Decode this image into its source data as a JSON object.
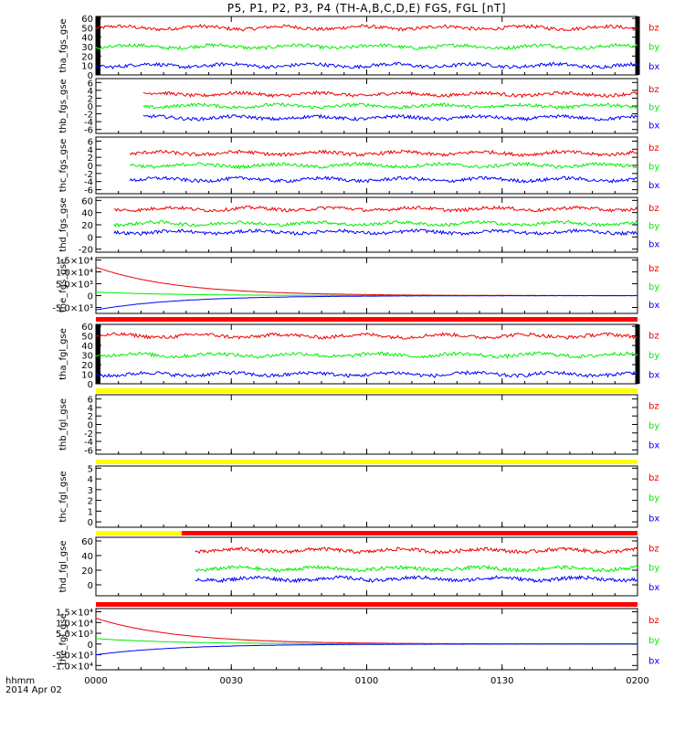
{
  "title": "P5, P1, P2, P3, P4 (TH-A,B,C,D,E) FGS, FGL [nT]",
  "time_axis": {
    "units_label": "hhmm",
    "date_label": "2014 Apr 02",
    "ticks": [
      "0000",
      "0030",
      "0100",
      "0130",
      "0200"
    ],
    "range_minutes": [
      0,
      120
    ]
  },
  "colors": {
    "bx": "#0000ff",
    "by": "#00ee00",
    "bz": "#ee0000",
    "flag_red": "#ff0000",
    "flag_yellow": "#ffff00",
    "frame": "#000000"
  },
  "chart_data": [
    {
      "type": "line",
      "panel": "tha_fgs_gse",
      "ylabel": "tha_fgs_gse",
      "yticks": [
        "0",
        "10",
        "20",
        "30",
        "40",
        "50",
        "60"
      ],
      "ylim": [
        0,
        62
      ],
      "legend": [
        "bz",
        "by",
        "bx"
      ],
      "data_x_range": [
        0,
        120
      ],
      "series": [
        {
          "name": "bz",
          "level": 50
        },
        {
          "name": "by",
          "level": 30
        },
        {
          "name": "bx",
          "level": 10
        }
      ],
      "dropout_bars": [
        [
          0,
          0.5
        ],
        [
          119.5,
          120
        ]
      ]
    },
    {
      "type": "line",
      "panel": "thb_fgs_gse",
      "ylabel": "thb_fgs_gse",
      "yticks": [
        "-6",
        "-4",
        "-2",
        "0",
        "2",
        "4",
        "6"
      ],
      "ylim": [
        -7,
        7
      ],
      "legend": [
        "bz",
        "by",
        "bx"
      ],
      "data_x_range": [
        10.5,
        120
      ],
      "series": [
        {
          "name": "bz",
          "level": 3
        },
        {
          "name": "by",
          "level": 0
        },
        {
          "name": "bx",
          "level": -3
        }
      ]
    },
    {
      "type": "line",
      "panel": "thc_fgs_gse",
      "ylabel": "thc_fgs_gse",
      "yticks": [
        "-6",
        "-4",
        "-2",
        "0",
        "2",
        "4",
        "6"
      ],
      "ylim": [
        -7,
        7
      ],
      "legend": [
        "bz",
        "by",
        "bx"
      ],
      "data_x_range": [
        7.5,
        120
      ],
      "series": [
        {
          "name": "bz",
          "level": 3
        },
        {
          "name": "by",
          "level": 0
        },
        {
          "name": "bx",
          "level": -3.5
        }
      ]
    },
    {
      "type": "line",
      "panel": "thd_fgs_gse",
      "ylabel": "thd_fgs_gse",
      "yticks": [
        "-20",
        "0",
        "20",
        "40",
        "60"
      ],
      "ylim": [
        -25,
        65
      ],
      "legend": [
        "bz",
        "by",
        "bx"
      ],
      "data_x_range": [
        4,
        120
      ],
      "series": [
        {
          "name": "bz",
          "level": 46
        },
        {
          "name": "by",
          "level": 22
        },
        {
          "name": "bx",
          "level": 8
        }
      ]
    },
    {
      "type": "line",
      "panel": "the_fgs_gse",
      "ylabel": "the_fgs_gse",
      "yticks": [
        "-5.0×10³",
        "0",
        "5.0×10³",
        "1.0×10⁴",
        "1.5×10⁴"
      ],
      "ylim": [
        -7500,
        16000
      ],
      "legend": [
        "bz",
        "by",
        "bx"
      ],
      "data_x_range": [
        0,
        120
      ],
      "series": [
        {
          "name": "bz",
          "start": 12000
        },
        {
          "name": "by",
          "start": 1500
        },
        {
          "name": "bx",
          "start": -6000
        }
      ],
      "flag_bar": [
        {
          "from": 0,
          "to": 120,
          "color": "red"
        }
      ]
    },
    {
      "type": "line",
      "panel": "tha_fgl_gse",
      "ylabel": "tha_fgl_gse",
      "yticks": [
        "0",
        "10",
        "20",
        "30",
        "40",
        "50",
        "60"
      ],
      "ylim": [
        0,
        62
      ],
      "legend": [
        "bz",
        "by",
        "bx"
      ],
      "data_x_range": [
        0,
        120
      ],
      "series": [
        {
          "name": "bz",
          "level": 50
        },
        {
          "name": "by",
          "level": 30
        },
        {
          "name": "bx",
          "level": 10
        }
      ],
      "dropout_bars": [
        [
          0,
          0.5
        ],
        [
          119.5,
          120
        ]
      ],
      "flag_bar": [
        {
          "from": 0,
          "to": 120,
          "color": "yellow"
        }
      ]
    },
    {
      "type": "line",
      "panel": "thb_fgl_gse",
      "ylabel": "thb_fgl_gse",
      "yticks": [
        "-6",
        "-4",
        "-2",
        "0",
        "2",
        "4",
        "6"
      ],
      "ylim": [
        -7,
        7
      ],
      "legend": [
        "bz",
        "by",
        "bx"
      ],
      "series": [],
      "flag_bar": [
        {
          "from": 0,
          "to": 120,
          "color": "yellow"
        }
      ]
    },
    {
      "type": "line",
      "panel": "thc_fgl_gse",
      "ylabel": "thc_fgl_gse",
      "yticks": [
        "0",
        "1",
        "2",
        "3",
        "4",
        "5"
      ],
      "ylim": [
        -0.5,
        5.2
      ],
      "legend": [
        "bz",
        "by",
        "bx"
      ],
      "series": [],
      "flag_bar": [
        {
          "from": 0,
          "to": 19,
          "color": "yellow"
        },
        {
          "from": 19,
          "to": 120,
          "color": "red"
        }
      ]
    },
    {
      "type": "line",
      "panel": "thd_fgl_gse",
      "ylabel": "thd_fgl_gse",
      "yticks": [
        "0",
        "20",
        "40",
        "60"
      ],
      "ylim": [
        -15,
        65
      ],
      "legend": [
        "bz",
        "by",
        "bx"
      ],
      "data_x_range": [
        22,
        120
      ],
      "series": [
        {
          "name": "bz",
          "level": 47
        },
        {
          "name": "by",
          "level": 22
        },
        {
          "name": "bx",
          "level": 8
        }
      ],
      "flag_bar": [
        {
          "from": 0,
          "to": 120,
          "color": "red"
        }
      ]
    },
    {
      "type": "line",
      "panel": "the_fgl_gse",
      "ylabel": "the_fgl_gse",
      "yticks": [
        "-1.0×10⁴",
        "-5.0×10³",
        "0",
        "5.0×10³",
        "1.0×10⁴",
        "1.5×10⁴"
      ],
      "ylim": [
        -12000,
        16500
      ],
      "legend": [
        "bz",
        "by",
        "bx"
      ],
      "data_x_range": [
        0,
        120
      ],
      "series": [
        {
          "name": "bz",
          "start": 12000
        },
        {
          "name": "by",
          "start": 2500
        },
        {
          "name": "bx",
          "start": -5000
        }
      ]
    }
  ]
}
